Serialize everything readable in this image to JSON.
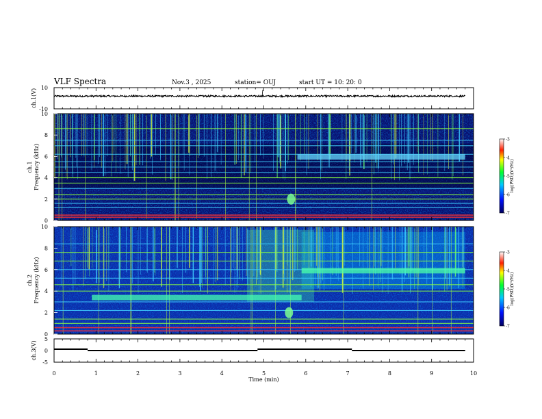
{
  "header": {
    "title": "VLF Spectra",
    "date": "Nov.3 , 2025",
    "station": "station= OUJ",
    "start_ut": "start UT = 10: 20: 0"
  },
  "chart_data": [
    {
      "type": "line",
      "name": "ch1-voltage",
      "ylabel": "ch.1(V)",
      "ylim": [
        -10,
        10
      ],
      "yticks": [
        "10",
        "-10"
      ],
      "xlim": [
        0,
        10
      ],
      "description_level": 2
    },
    {
      "type": "heatmap",
      "name": "ch1-spectrogram",
      "ylabel_top": "ch.1",
      "ylabel": "Frequency (kHz)",
      "ylim": [
        0,
        10
      ],
      "yticks": [
        "0",
        "2",
        "4",
        "6",
        "8",
        "10"
      ],
      "xlim": [
        0,
        10
      ],
      "colorbar": {
        "label": "log(PSD)(V²/Hz)",
        "range": [
          -7,
          -3
        ],
        "ticks": [
          "-3",
          "-4",
          "-5",
          "-6",
          "-7"
        ]
      },
      "bands_khz": [
        0.3,
        0.5,
        1.2,
        1.6,
        2.0,
        2.4,
        3.0,
        3.5,
        4.0,
        4.5,
        5.0,
        5.5,
        6.2,
        7.0,
        7.5,
        8.6
      ],
      "emission": {
        "freq_khz": 5.95,
        "x_start_min": 5.8,
        "x_end_min": 9.8
      },
      "burst": {
        "freq_khz": 2.0,
        "x_min": 5.65
      }
    },
    {
      "type": "heatmap",
      "name": "ch2-spectrogram",
      "ylabel_top": "ch.2",
      "ylabel": "Frequency (kHz)",
      "ylim": [
        0,
        10
      ],
      "yticks": [
        "0",
        "2",
        "4",
        "6",
        "8",
        "10"
      ],
      "xlim": [
        0,
        10
      ],
      "colorbar": {
        "label": "log(PSD)(V²/Hz)",
        "range": [
          -7,
          -3
        ],
        "ticks": [
          "-3",
          "-4",
          "-5",
          "-6",
          "-7"
        ]
      },
      "bands_khz": [
        0.3,
        0.6,
        1.0,
        1.4,
        2.2,
        3.0,
        4.0,
        4.6,
        5.2,
        6.0,
        6.8,
        7.6,
        8.4
      ],
      "emission_low": {
        "freq_khz": 3.4,
        "x_start_min": 0.9,
        "x_end_min": 5.9
      },
      "emission_high": {
        "freq_khz": 5.9,
        "x_start_min": 5.9,
        "x_end_min": 9.8
      },
      "burst": {
        "freq_khz": 2.0,
        "x_min": 5.6
      }
    },
    {
      "type": "line",
      "name": "ch3-voltage",
      "ylabel": "ch.3(V)",
      "ylim": [
        -5,
        5
      ],
      "yticks": [
        "5",
        "0",
        "-5"
      ],
      "xlim": [
        0,
        10
      ],
      "xlabel": "Time (min)",
      "xticks": [
        "0",
        "1",
        "2",
        "3",
        "4",
        "5",
        "6",
        "7",
        "8",
        "9",
        "10"
      ],
      "segments": [
        {
          "x0": 0.0,
          "x1": 0.8,
          "y": 0.6
        },
        {
          "x0": 0.8,
          "x1": 4.85,
          "y": 0.0
        },
        {
          "x0": 4.85,
          "x1": 7.1,
          "y": 0.6
        },
        {
          "x0": 7.1,
          "x1": 9.8,
          "y": 0.0
        }
      ]
    }
  ]
}
